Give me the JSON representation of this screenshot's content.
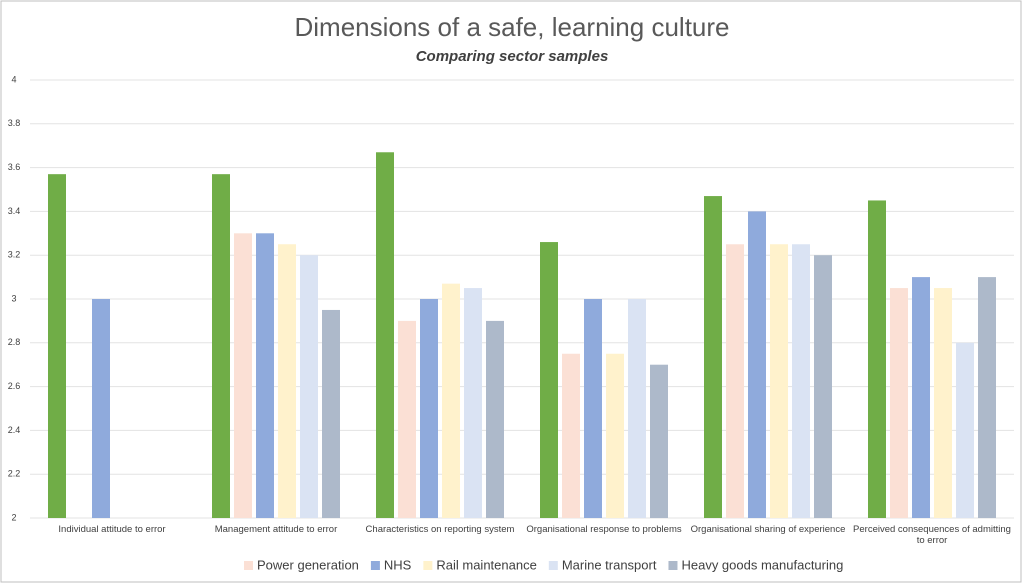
{
  "chart_data": {
    "type": "bar",
    "title": "Dimensions of a safe, learning culture",
    "subtitle": "Comparing sector samples",
    "categories": [
      "Individual attitude to error",
      "Management attitude to error",
      "Characteristics on reporting system",
      "Organisational response to problems",
      "Organisational sharing of experience",
      "Perceived consequences of admitting to error"
    ],
    "series": [
      {
        "color": "#70ad47",
        "values": [
          3.57,
          3.57,
          3.67,
          3.26,
          3.47,
          3.45
        ]
      },
      {
        "name": "Power generation",
        "color": "#fbe0d5",
        "values": [
          null,
          3.3,
          2.9,
          2.75,
          3.25,
          3.05
        ]
      },
      {
        "name": "NHS",
        "color": "#8faadc",
        "values": [
          3.0,
          3.3,
          3.0,
          3.0,
          3.4,
          3.1
        ]
      },
      {
        "name": "Rail maintenance",
        "color": "#fff2cc",
        "values": [
          null,
          3.25,
          3.07,
          2.75,
          3.25,
          3.05
        ]
      },
      {
        "name": "Marine transport",
        "color": "#dae3f3",
        "values": [
          null,
          3.2,
          3.05,
          3.0,
          3.25,
          2.8
        ]
      },
      {
        "name": "Heavy goods manufacturing",
        "color": "#adb9ca",
        "values": [
          null,
          2.95,
          2.9,
          2.7,
          3.2,
          3.1
        ]
      }
    ],
    "ylim": [
      2,
      4
    ],
    "yticks": [
      2,
      2.2,
      2.4,
      2.6,
      2.8,
      3,
      3.2,
      3.4,
      3.6,
      3.8,
      4
    ],
    "grid": true,
    "legend": "bottom"
  }
}
